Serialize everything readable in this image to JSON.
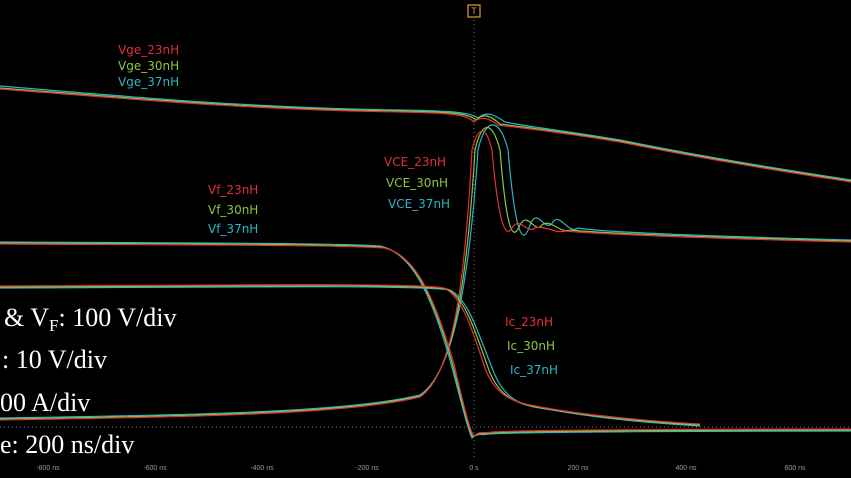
{
  "labels": {
    "vge": [
      "Vge_23nH",
      "Vge_30nH",
      "Vge_37nH"
    ],
    "vce": [
      "VCE_23nH",
      "VCE_30nH",
      "VCE_37nH"
    ],
    "vf": [
      "Vf_23nH",
      "Vf_30nH",
      "Vf_37nH"
    ],
    "ic": [
      "Ic_23nH",
      "Ic_30nH",
      "Ic_37nH"
    ]
  },
  "scales": {
    "line0": {
      "before": "& V",
      "sub": "F",
      "after": ": 100 V/div"
    },
    "line1": ": 10 V/div",
    "line2": "00 A/div",
    "line3": "e: 200 ns/div"
  },
  "x_ticks": [
    "-800 ns",
    "-600 ns",
    "-400 ns",
    "-200 ns",
    "0 s",
    "200 ns",
    "400 ns",
    "600 ns"
  ],
  "trigger": "T"
}
